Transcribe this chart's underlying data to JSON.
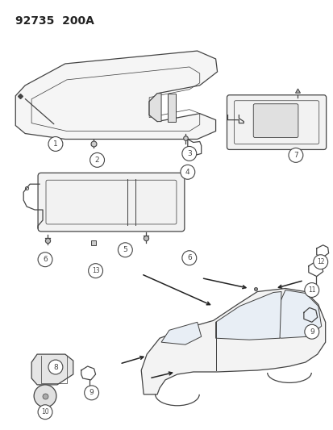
{
  "title": "92735  200A",
  "bg_color": "#ffffff",
  "title_fontsize": 10,
  "fig_width": 4.14,
  "fig_height": 5.33,
  "dpi": 100,
  "lc": "#444444",
  "arrow_color": "#222222"
}
